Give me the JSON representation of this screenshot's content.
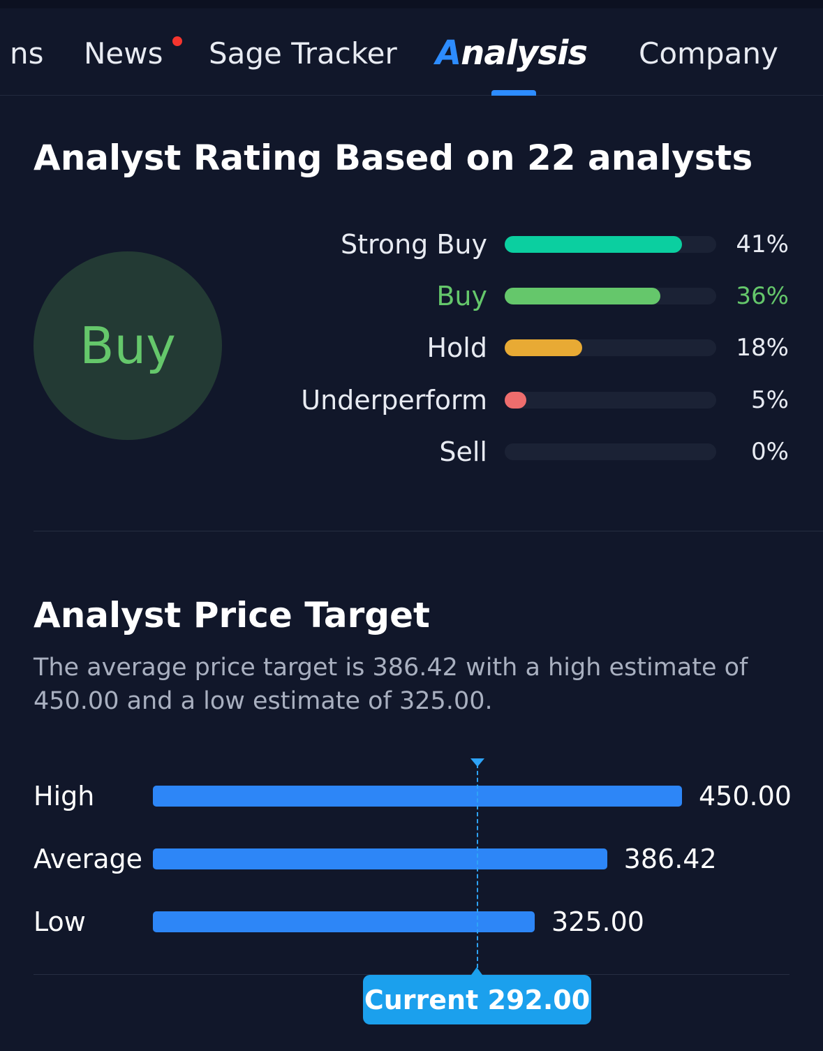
{
  "tabs": {
    "items": [
      {
        "label": "ns",
        "active": false
      },
      {
        "label": "News",
        "active": false,
        "has_notification": true
      },
      {
        "label": "Sage Tracker",
        "active": false
      },
      {
        "label": "Analysis",
        "active": true
      },
      {
        "label": "Company",
        "active": false
      }
    ]
  },
  "rating": {
    "title": "Analyst Rating Based on 22 analysts",
    "consensus": "Buy",
    "rows": [
      {
        "label": "Strong Buy",
        "percent_text": "41%",
        "value": 41,
        "color": "#0bcfa0"
      },
      {
        "label": "Buy",
        "percent_text": "36%",
        "value": 36,
        "color": "#65c76b"
      },
      {
        "label": "Hold",
        "percent_text": "18%",
        "value": 18,
        "color": "#e8aa34"
      },
      {
        "label": "Underperform",
        "percent_text": "5%",
        "value": 5,
        "color": "#ee6d6d"
      },
      {
        "label": "Sell",
        "percent_text": "0%",
        "value": 0,
        "color": "#d14646"
      }
    ]
  },
  "price_target": {
    "title": "Analyst Price Target",
    "description": "The average price target is 386.42 with a high estimate of 450.00 and a low estimate of 325.00.",
    "rows": [
      {
        "label": "High",
        "value_text": "450.00",
        "value": 450.0
      },
      {
        "label": "Average",
        "value_text": "386.42",
        "value": 386.42
      },
      {
        "label": "Low",
        "value_text": "325.00",
        "value": 325.0
      }
    ],
    "current_label": "Current 292.00",
    "current_value": 292.0,
    "bar_color": "#2d86f7",
    "marker_color": "#1ba0ed"
  }
}
